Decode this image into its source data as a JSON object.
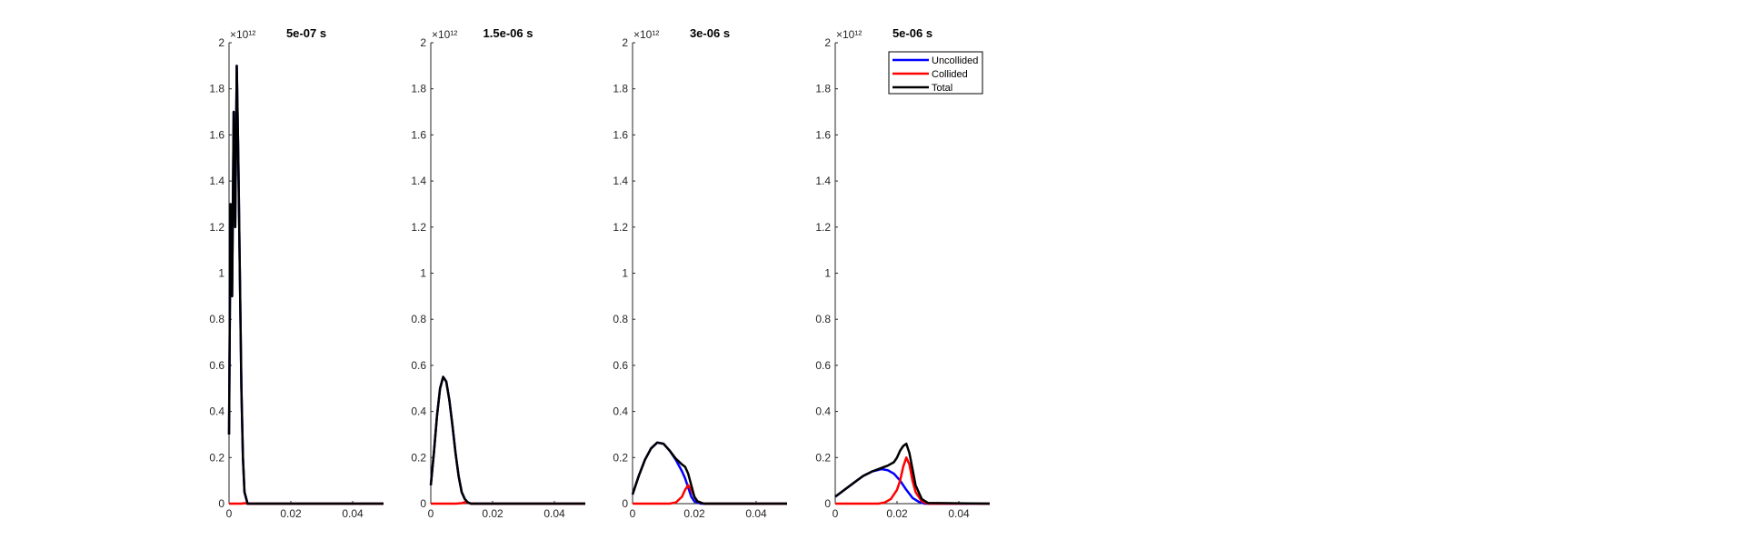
{
  "chart_data": [
    {
      "type": "line",
      "title": "5e-07 s",
      "xlim": [
        0,
        0.05
      ],
      "ylim": [
        0,
        2000000000000.0
      ],
      "x_ticks": [
        "0",
        "0.02",
        "0.04"
      ],
      "y_ticks": [
        "0",
        "0.2",
        "0.4",
        "0.6",
        "0.8",
        "1",
        "1.2",
        "1.4",
        "1.6",
        "1.8",
        "2"
      ],
      "y_exponent": "×10¹²",
      "series": [
        {
          "color": "#0000ff",
          "x": [
            0,
            0.0005,
            0.001,
            0.0015,
            0.002,
            0.0025,
            0.003,
            0.0035,
            0.004,
            0.0045,
            0.005,
            0.006,
            0.05
          ],
          "y": [
            0.3,
            1.3,
            0.9,
            1.7,
            1.2,
            1.9,
            1.5,
            1.0,
            0.5,
            0.2,
            0.05,
            0,
            0
          ]
        },
        {
          "color": "#ff0000",
          "x": [
            0,
            0.004,
            0.005,
            0.006,
            0.05
          ],
          "y": [
            0,
            0,
            0.002,
            0,
            0
          ]
        },
        {
          "color": "#000000",
          "x": [
            0,
            0.0005,
            0.001,
            0.0015,
            0.002,
            0.0025,
            0.003,
            0.0035,
            0.004,
            0.0045,
            0.005,
            0.006,
            0.05
          ],
          "y": [
            0.3,
            1.3,
            0.9,
            1.7,
            1.2,
            1.9,
            1.5,
            1.0,
            0.5,
            0.2,
            0.05,
            0,
            0
          ]
        }
      ]
    },
    {
      "type": "line",
      "title": "1.5e-06 s",
      "xlim": [
        0,
        0.05
      ],
      "ylim": [
        0,
        2000000000000.0
      ],
      "x_ticks": [
        "0",
        "0.02",
        "0.04"
      ],
      "y_ticks": [
        "0",
        "0.2",
        "0.4",
        "0.6",
        "0.8",
        "1",
        "1.2",
        "1.4",
        "1.6",
        "1.8",
        "2"
      ],
      "y_exponent": "×10¹²",
      "series": [
        {
          "color": "#0000ff",
          "x": [
            0,
            0.001,
            0.002,
            0.003,
            0.004,
            0.005,
            0.006,
            0.007,
            0.008,
            0.009,
            0.01,
            0.011,
            0.012,
            0.013,
            0.05
          ],
          "y": [
            0.08,
            0.22,
            0.38,
            0.5,
            0.55,
            0.53,
            0.45,
            0.34,
            0.22,
            0.12,
            0.05,
            0.02,
            0.005,
            0,
            0
          ]
        },
        {
          "color": "#ff0000",
          "x": [
            0,
            0.008,
            0.01,
            0.011,
            0.012,
            0.013,
            0.05
          ],
          "y": [
            0,
            0,
            0.002,
            0.006,
            0.004,
            0,
            0
          ]
        },
        {
          "color": "#000000",
          "x": [
            0,
            0.001,
            0.002,
            0.003,
            0.004,
            0.005,
            0.006,
            0.007,
            0.008,
            0.009,
            0.01,
            0.011,
            0.012,
            0.013,
            0.05
          ],
          "y": [
            0.08,
            0.22,
            0.38,
            0.5,
            0.55,
            0.53,
            0.45,
            0.34,
            0.22,
            0.12,
            0.05,
            0.02,
            0.005,
            0,
            0
          ]
        }
      ]
    },
    {
      "type": "line",
      "title": "3e-06 s",
      "xlim": [
        0,
        0.05
      ],
      "ylim": [
        0,
        2000000000000.0
      ],
      "x_ticks": [
        "0",
        "0.02",
        "0.04"
      ],
      "y_ticks": [
        "0",
        "0.2",
        "0.4",
        "0.6",
        "0.8",
        "1",
        "1.2",
        "1.4",
        "1.6",
        "1.8",
        "2"
      ],
      "y_exponent": "×10¹²",
      "series": [
        {
          "color": "#0000ff",
          "x": [
            0,
            0.002,
            0.004,
            0.006,
            0.008,
            0.01,
            0.012,
            0.014,
            0.016,
            0.017,
            0.018,
            0.019,
            0.02,
            0.022,
            0.05
          ],
          "y": [
            0.04,
            0.12,
            0.19,
            0.24,
            0.265,
            0.26,
            0.23,
            0.19,
            0.14,
            0.11,
            0.07,
            0.03,
            0.01,
            0,
            0
          ]
        },
        {
          "color": "#ff0000",
          "x": [
            0,
            0.012,
            0.014,
            0.016,
            0.017,
            0.018,
            0.019,
            0.02,
            0.021,
            0.023,
            0.05
          ],
          "y": [
            0,
            0,
            0.005,
            0.03,
            0.06,
            0.08,
            0.06,
            0.03,
            0.01,
            0,
            0
          ]
        },
        {
          "color": "#000000",
          "x": [
            0,
            0.002,
            0.004,
            0.006,
            0.008,
            0.01,
            0.012,
            0.014,
            0.016,
            0.017,
            0.018,
            0.019,
            0.02,
            0.021,
            0.023,
            0.05
          ],
          "y": [
            0.04,
            0.12,
            0.19,
            0.24,
            0.265,
            0.26,
            0.23,
            0.195,
            0.17,
            0.16,
            0.13,
            0.08,
            0.03,
            0.01,
            0,
            0
          ]
        }
      ]
    },
    {
      "type": "line",
      "title": "5e-06 s",
      "xlim": [
        0,
        0.05
      ],
      "ylim": [
        0,
        2000000000000.0
      ],
      "x_ticks": [
        "0",
        "0.02",
        "0.04"
      ],
      "y_ticks": [
        "0",
        "0.2",
        "0.4",
        "0.6",
        "0.8",
        "1",
        "1.2",
        "1.4",
        "1.6",
        "1.8",
        "2"
      ],
      "y_exponent": "×10¹²",
      "legend": {
        "position": "top-right",
        "entries": [
          "Uncollided",
          "Collided",
          "Total"
        ]
      },
      "series": [
        {
          "name": "Uncollided",
          "color": "#0000ff",
          "x": [
            0,
            0.003,
            0.006,
            0.009,
            0.012,
            0.015,
            0.017,
            0.019,
            0.021,
            0.023,
            0.025,
            0.027,
            0.029,
            0.05
          ],
          "y": [
            0.03,
            0.06,
            0.09,
            0.12,
            0.14,
            0.15,
            0.145,
            0.13,
            0.1,
            0.06,
            0.025,
            0.008,
            0,
            0
          ]
        },
        {
          "name": "Collided",
          "color": "#ff0000",
          "x": [
            0,
            0.014,
            0.016,
            0.018,
            0.02,
            0.021,
            0.022,
            0.023,
            0.024,
            0.025,
            0.026,
            0.028,
            0.03,
            0.05
          ],
          "y": [
            0,
            0,
            0.005,
            0.02,
            0.06,
            0.1,
            0.16,
            0.2,
            0.17,
            0.1,
            0.05,
            0.01,
            0,
            0
          ]
        },
        {
          "name": "Total",
          "color": "#000000",
          "x": [
            0,
            0.003,
            0.006,
            0.009,
            0.012,
            0.015,
            0.017,
            0.019,
            0.02,
            0.021,
            0.022,
            0.023,
            0.024,
            0.025,
            0.026,
            0.028,
            0.03,
            0.05
          ],
          "y": [
            0.03,
            0.06,
            0.09,
            0.12,
            0.14,
            0.155,
            0.165,
            0.18,
            0.2,
            0.23,
            0.25,
            0.26,
            0.22,
            0.15,
            0.08,
            0.02,
            0.003,
            0
          ]
        }
      ]
    }
  ]
}
